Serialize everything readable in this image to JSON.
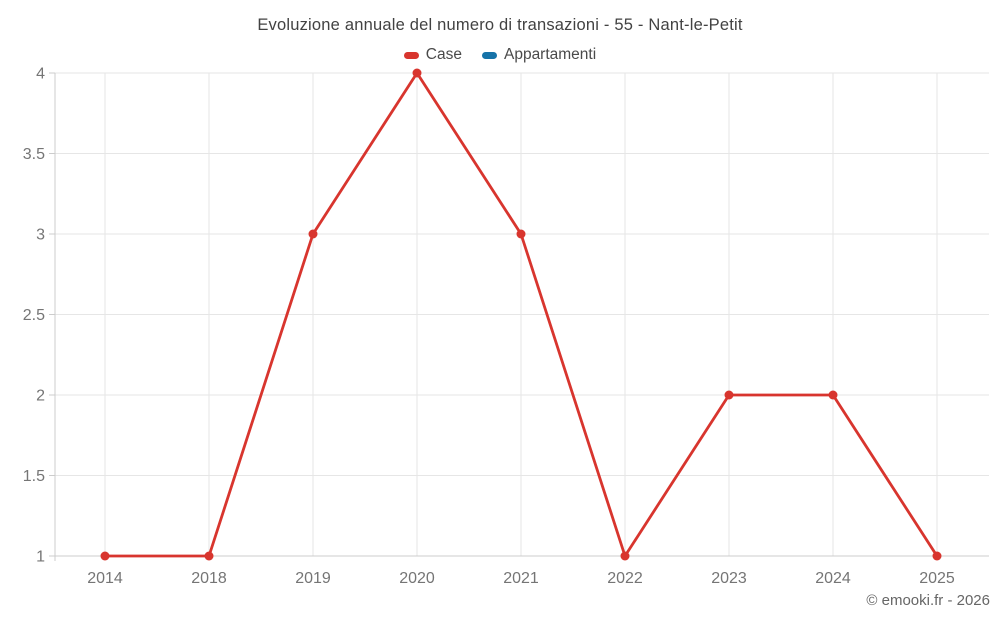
{
  "chart_title": "Evoluzione annuale del numero di transazioni - 55 - Nant-le-Petit",
  "footer": "© emooki.fr - 2026",
  "colors": {
    "case_red": "#d8352e",
    "appartamenti_blue": "#1673a8",
    "gridline": "#e6e6e6",
    "axis": "#cccccc",
    "tick_label": "#757575"
  },
  "legend": {
    "items": [
      {
        "label": "Case",
        "color": "#d8352e"
      },
      {
        "label": "Appartamenti",
        "color": "#1673a8"
      }
    ]
  },
  "chart_data": {
    "type": "line",
    "title": "Evoluzione annuale del numero di transazioni - 55 - Nant-le-Petit",
    "categories": [
      "2014",
      "2018",
      "2019",
      "2020",
      "2021",
      "2022",
      "2023",
      "2024",
      "2025"
    ],
    "series": [
      {
        "name": "Case",
        "color": "#d8352e",
        "values": [
          1,
          1,
          3,
          4,
          3,
          1,
          2,
          2,
          1
        ]
      },
      {
        "name": "Appartamenti",
        "color": "#1673a8",
        "values": []
      }
    ],
    "xlabel": "",
    "ylabel": "",
    "ylim": [
      1,
      4
    ],
    "yticks": [
      1,
      1.5,
      2,
      2.5,
      3,
      3.5,
      4
    ],
    "grid": true,
    "legend_position": "top"
  }
}
